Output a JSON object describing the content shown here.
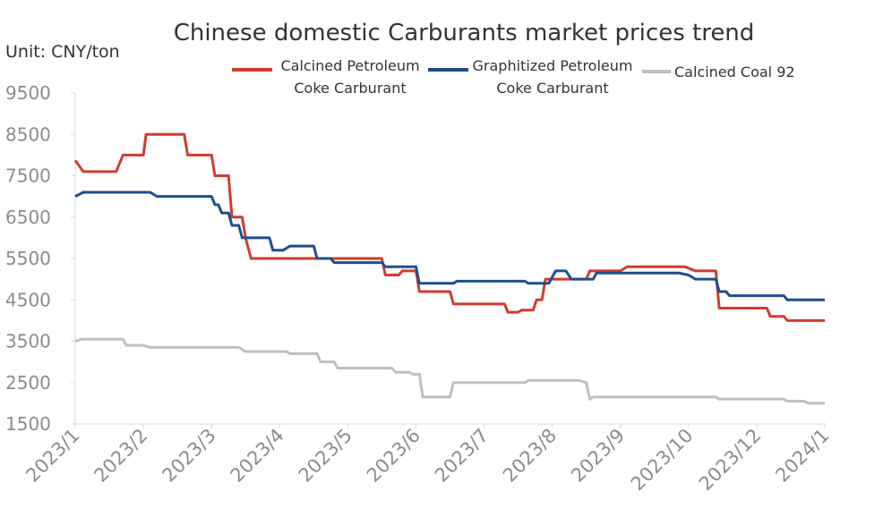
{
  "chart_data": {
    "type": "line",
    "title": "Chinese domestic Carburants market prices trend",
    "unit_label": "Unit: CNY/ton",
    "ylim": [
      1500,
      9500
    ],
    "yticks": [
      "9500",
      "8500",
      "7500",
      "6500",
      "5500",
      "4500",
      "3500",
      "2500",
      "1500"
    ],
    "xticks": [
      "2023/1",
      "2023/2",
      "2023/3",
      "2023/4",
      "2023/5",
      "2023/6",
      "2023/7",
      "2023/8",
      "2023/9",
      "2023/10",
      "2023/12",
      "2024/1"
    ],
    "xlim": [
      0,
      11
    ],
    "grid": false,
    "legend_position": "top",
    "series": [
      {
        "name_lines": [
          "Calcined Petroleum",
          "Coke Carburant"
        ],
        "color": "#d13c2f",
        "points": [
          [
            0.0,
            7870
          ],
          [
            0.12,
            7600
          ],
          [
            0.6,
            7600
          ],
          [
            0.7,
            8000
          ],
          [
            1.0,
            8000
          ],
          [
            1.04,
            8500
          ],
          [
            1.6,
            8500
          ],
          [
            1.65,
            8000
          ],
          [
            2.0,
            8000
          ],
          [
            2.05,
            7500
          ],
          [
            2.25,
            7500
          ],
          [
            2.3,
            6500
          ],
          [
            2.45,
            6500
          ],
          [
            2.5,
            6000
          ],
          [
            2.58,
            5500
          ],
          [
            4.5,
            5500
          ],
          [
            4.55,
            5100
          ],
          [
            4.75,
            5100
          ],
          [
            4.8,
            5200
          ],
          [
            5.0,
            5200
          ],
          [
            5.05,
            4700
          ],
          [
            5.5,
            4700
          ],
          [
            5.55,
            4400
          ],
          [
            6.3,
            4400
          ],
          [
            6.35,
            4200
          ],
          [
            6.5,
            4200
          ],
          [
            6.55,
            4250
          ],
          [
            6.72,
            4250
          ],
          [
            6.77,
            4500
          ],
          [
            6.85,
            4500
          ],
          [
            6.9,
            5000
          ],
          [
            7.5,
            5000
          ],
          [
            7.55,
            5200
          ],
          [
            8.0,
            5200
          ],
          [
            8.1,
            5300
          ],
          [
            8.95,
            5300
          ],
          [
            9.1,
            5200
          ],
          [
            9.4,
            5200
          ],
          [
            9.45,
            4300
          ],
          [
            10.15,
            4300
          ],
          [
            10.2,
            4100
          ],
          [
            10.4,
            4100
          ],
          [
            10.45,
            4000
          ],
          [
            11.0,
            4000
          ]
        ]
      },
      {
        "name_lines": [
          "Graphitized  Petroleum",
          "Coke Carburant"
        ],
        "color": "#1f4e8c",
        "points": [
          [
            0.0,
            7000
          ],
          [
            0.12,
            7100
          ],
          [
            1.1,
            7100
          ],
          [
            1.2,
            7000
          ],
          [
            2.0,
            7000
          ],
          [
            2.05,
            6800
          ],
          [
            2.1,
            6800
          ],
          [
            2.15,
            6600
          ],
          [
            2.25,
            6600
          ],
          [
            2.3,
            6300
          ],
          [
            2.4,
            6300
          ],
          [
            2.45,
            6000
          ],
          [
            2.85,
            6000
          ],
          [
            2.9,
            5700
          ],
          [
            3.05,
            5700
          ],
          [
            3.15,
            5800
          ],
          [
            3.5,
            5800
          ],
          [
            3.55,
            5500
          ],
          [
            3.75,
            5500
          ],
          [
            3.8,
            5400
          ],
          [
            4.5,
            5400
          ],
          [
            4.55,
            5300
          ],
          [
            5.0,
            5300
          ],
          [
            5.05,
            4900
          ],
          [
            5.55,
            4900
          ],
          [
            5.6,
            4950
          ],
          [
            6.6,
            4950
          ],
          [
            6.65,
            4900
          ],
          [
            6.95,
            4900
          ],
          [
            7.05,
            5200
          ],
          [
            7.2,
            5200
          ],
          [
            7.28,
            5000
          ],
          [
            7.6,
            5000
          ],
          [
            7.65,
            5150
          ],
          [
            8.85,
            5150
          ],
          [
            9.0,
            5100
          ],
          [
            9.1,
            5000
          ],
          [
            9.4,
            5000
          ],
          [
            9.45,
            4700
          ],
          [
            9.55,
            4700
          ],
          [
            9.6,
            4600
          ],
          [
            10.4,
            4600
          ],
          [
            10.45,
            4500
          ],
          [
            11.0,
            4500
          ]
        ]
      },
      {
        "name_lines": [
          "Calcined Coal 92"
        ],
        "color": "#bfbfbf",
        "points": [
          [
            0.0,
            3500
          ],
          [
            0.1,
            3550
          ],
          [
            0.7,
            3550
          ],
          [
            0.75,
            3400
          ],
          [
            1.0,
            3400
          ],
          [
            1.1,
            3350
          ],
          [
            2.4,
            3350
          ],
          [
            2.5,
            3250
          ],
          [
            3.1,
            3250
          ],
          [
            3.15,
            3200
          ],
          [
            3.55,
            3200
          ],
          [
            3.6,
            3000
          ],
          [
            3.8,
            3000
          ],
          [
            3.85,
            2850
          ],
          [
            4.65,
            2850
          ],
          [
            4.7,
            2750
          ],
          [
            4.9,
            2750
          ],
          [
            4.95,
            2700
          ],
          [
            5.05,
            2700
          ],
          [
            5.1,
            2150
          ],
          [
            5.5,
            2150
          ],
          [
            5.55,
            2500
          ],
          [
            6.6,
            2500
          ],
          [
            6.65,
            2550
          ],
          [
            7.4,
            2550
          ],
          [
            7.5,
            2500
          ],
          [
            7.55,
            2100
          ],
          [
            7.6,
            2150
          ],
          [
            9.4,
            2150
          ],
          [
            9.45,
            2100
          ],
          [
            10.4,
            2100
          ],
          [
            10.45,
            2050
          ],
          [
            10.7,
            2050
          ],
          [
            10.75,
            2000
          ],
          [
            11.0,
            2000
          ]
        ]
      }
    ]
  }
}
